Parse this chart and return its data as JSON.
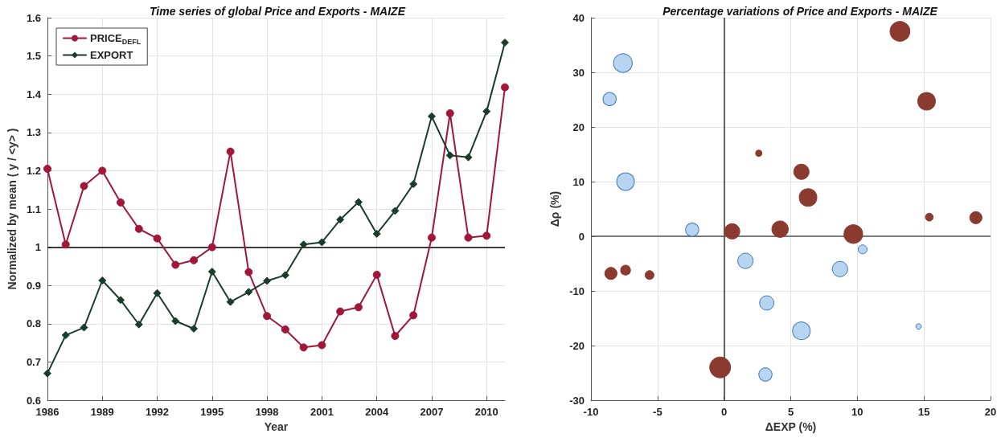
{
  "chart_data": [
    {
      "type": "line",
      "title": "Time series of global Price and Exports - MAIZE",
      "xlabel": "Year",
      "ylabel": "Normalized by mean ( y / <y> )",
      "x": [
        1986,
        1987,
        1988,
        1989,
        1990,
        1991,
        1992,
        1993,
        1994,
        1995,
        1996,
        1997,
        1998,
        1999,
        2000,
        2001,
        2002,
        2003,
        2004,
        2005,
        2006,
        2007,
        2008,
        2009,
        2010,
        2011
      ],
      "series": [
        {
          "name": "PRICE$_{DEFL}$",
          "color": "#a0173a",
          "marker": "circle",
          "values": [
            1.205,
            1.007,
            1.16,
            1.2,
            1.117,
            1.048,
            1.023,
            0.954,
            0.966,
            1.0,
            1.25,
            0.935,
            0.82,
            0.785,
            0.738,
            0.744,
            0.832,
            0.843,
            0.928,
            0.768,
            0.822,
            1.025,
            1.35,
            1.025,
            1.03,
            1.418
          ]
        },
        {
          "name": "EXPORT",
          "color": "#1a3d2b",
          "marker": "diamond",
          "values": [
            0.67,
            0.77,
            0.79,
            0.913,
            0.862,
            0.798,
            0.88,
            0.807,
            0.787,
            0.936,
            0.857,
            0.883,
            0.912,
            0.927,
            1.007,
            1.013,
            1.072,
            1.118,
            1.035,
            1.095,
            1.165,
            1.342,
            1.24,
            1.235,
            1.355,
            1.535
          ]
        }
      ],
      "xlim": [
        1986,
        2011
      ],
      "xticks": [
        1986,
        1989,
        1992,
        1995,
        1998,
        2001,
        2004,
        2007,
        2010
      ],
      "ylim": [
        0.6,
        1.6
      ],
      "yticks": [
        0.6,
        0.7,
        0.8,
        0.9,
        1,
        1.1,
        1.2,
        1.3,
        1.4,
        1.5,
        1.6
      ],
      "ref_lines": [
        {
          "axis": "y",
          "value": 1,
          "color": "#000000"
        }
      ],
      "grid": true,
      "legend": "top left"
    },
    {
      "type": "bubble",
      "title": "Percentage variations of Price and Exports - MAIZE",
      "xlabel": "ΔEXP (%)",
      "ylabel": "Δρ (%)",
      "series": [
        {
          "color": "#8b3a2f",
          "x": [
            13.2,
            15.2,
            5.8,
            6.3,
            4.2,
            9.7,
            15.4,
            18.9,
            2.6,
            0.6,
            -8.5,
            -7.4,
            -5.6,
            -0.3
          ],
          "values": [
            37.5,
            24.7,
            11.8,
            7.1,
            1.3,
            0.4,
            3.5,
            3.4,
            15.2,
            0.9,
            -6.8,
            -6.2,
            -7.1,
            -24
          ],
          "sizes": [
            0.9,
            0.71,
            0.54,
            0.71,
            0.62,
            0.8,
            0.14,
            0.34,
            0.09,
            0.54,
            0.34,
            0.22,
            0.18,
            1
          ]
        },
        {
          "color": "#b7d5f0",
          "x": [
            -7.6,
            -8.6,
            -7.4,
            -2.4,
            1.6,
            3.2,
            3.1,
            5.8,
            8.7,
            10.4,
            14.6
          ],
          "values": [
            31.7,
            25.1,
            10,
            1.2,
            -4.5,
            -12.2,
            -25.3,
            -17.3,
            -6,
            -2.4,
            -16.5
          ],
          "sizes": [
            0.8,
            0.4,
            0.71,
            0.4,
            0.54,
            0.47,
            0.4,
            0.71,
            0.54,
            0.18,
            0.07
          ]
        }
      ],
      "xlim": [
        -10,
        20
      ],
      "xticks": [
        -10,
        -5,
        0,
        5,
        10,
        15,
        20
      ],
      "ylim": [
        -30,
        40
      ],
      "yticks": [
        -30,
        -20,
        -10,
        0,
        10,
        20,
        30,
        40
      ],
      "ref_lines": [
        {
          "axis": "x",
          "value": 0,
          "color": "#333333"
        },
        {
          "axis": "y",
          "value": 0,
          "color": "#555555"
        }
      ],
      "grid": true
    }
  ]
}
